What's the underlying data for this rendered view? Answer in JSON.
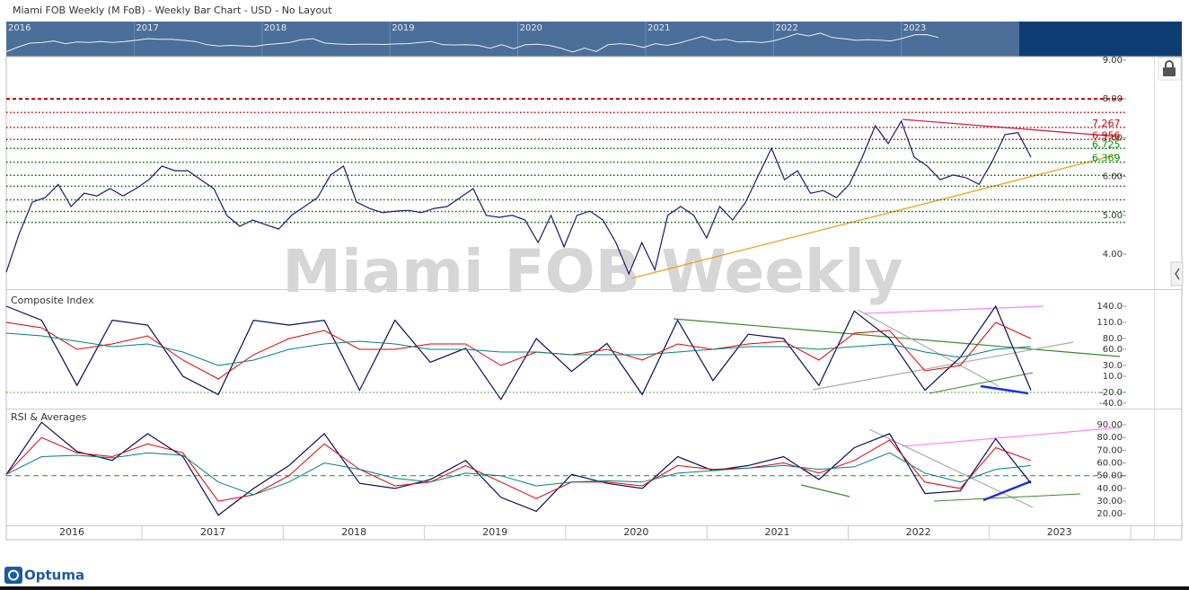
{
  "title": "Miami FOB Weekly (M FoB) - Weekly Bar Chart - USD - No Layout",
  "watermark": "Miami FOB Weekly",
  "logo": "Optuma",
  "years": [
    "2016",
    "2017",
    "2018",
    "2019",
    "2020",
    "2021",
    "2022",
    "2023"
  ],
  "chart_data": [
    {
      "type": "line",
      "series": [
        {
          "name": "Price",
          "color": "#1a1a6e",
          "values": [
            3.54,
            4.53,
            5.34,
            5.46,
            5.8,
            5.23,
            5.57,
            5.5,
            5.69,
            5.5,
            5.69,
            5.92,
            6.27,
            6.15,
            6.15,
            5.92,
            5.69,
            5.0,
            4.72,
            4.88,
            4.76,
            4.65,
            5.0,
            5.23,
            5.46,
            6.04,
            6.27,
            5.34,
            5.18,
            5.07,
            5.11,
            5.13,
            5.07,
            5.18,
            5.23,
            5.46,
            5.69,
            5.0,
            4.95,
            5.0,
            4.88,
            4.3,
            5.0,
            4.19,
            5.0,
            5.11,
            4.88,
            4.3,
            3.49,
            4.3,
            3.6,
            5.0,
            5.23,
            5.0,
            4.42,
            5.23,
            4.88,
            5.34,
            6.04,
            6.73,
            5.92,
            6.15,
            5.57,
            5.64,
            5.46,
            5.8,
            6.5,
            7.31,
            6.85,
            7.43,
            6.5,
            6.27,
            5.92,
            6.04,
            5.97,
            5.8,
            6.38,
            7.08,
            7.13,
            6.5
          ]
        }
      ],
      "ylim": [
        3.1,
        9.09
      ],
      "yticks": [
        {
          "value": 9,
          "label": "9.00"
        },
        {
          "value": 8,
          "label": "8.00"
        },
        {
          "value": 7,
          "label": "7.00"
        },
        {
          "value": 6,
          "label": "6.00"
        },
        {
          "value": 5,
          "label": "5.00"
        },
        {
          "value": 4,
          "label": "4.00"
        }
      ],
      "levels": [
        {
          "value": 8.0,
          "color": "#cc0000"
        },
        {
          "value": 7.65,
          "color": "#cc0000"
        },
        {
          "value": 7.267,
          "color": "#cc0000"
        },
        {
          "value": 6.956,
          "color": "#cc0000"
        },
        {
          "value": 6.725,
          "color": "#006600"
        },
        {
          "value": 6.369,
          "color": "#006600"
        },
        {
          "value": 6.03,
          "color": "#006600"
        },
        {
          "value": 5.75,
          "color": "#006600"
        },
        {
          "value": 5.4,
          "color": "#006600"
        },
        {
          "value": 5.1,
          "color": "#006600"
        },
        {
          "value": 4.82,
          "color": "#006600"
        }
      ],
      "price_labels": [
        7.267,
        6.956,
        6.725,
        6.369
      ],
      "price_label_colors": [
        "#cc0000",
        "#cc0000",
        "#009900",
        "#009900"
      ]
    },
    {
      "type": "line",
      "title": "Composite Index",
      "series": [
        {
          "name": "Composite",
          "color": "#0b0b5e",
          "values": [
            140,
            114,
            -7,
            114,
            105,
            10,
            -24,
            114,
            105,
            114,
            -16,
            114,
            36,
            62,
            -33,
            80,
            19,
            71,
            -24,
            114,
            2,
            88,
            80,
            -7,
            131,
            80,
            -16,
            45,
            140,
            -16
          ]
        },
        {
          "name": "Fast Avg",
          "color": "#e00000",
          "values": [
            110,
            100,
            60,
            70,
            85,
            40,
            5,
            50,
            80,
            95,
            60,
            60,
            70,
            70,
            30,
            55,
            50,
            60,
            40,
            70,
            60,
            70,
            75,
            40,
            90,
            95,
            20,
            30,
            110,
            80
          ]
        },
        {
          "name": "Slow Avg",
          "color": "#008080",
          "values": [
            90,
            85,
            75,
            65,
            70,
            55,
            30,
            40,
            60,
            70,
            75,
            70,
            60,
            60,
            55,
            55,
            50,
            50,
            50,
            55,
            60,
            65,
            65,
            60,
            65,
            70,
            55,
            45,
            60,
            65
          ]
        }
      ],
      "ylim": [
        -50,
        170
      ],
      "yticks": [
        {
          "value": 140,
          "label": "140.0"
        },
        {
          "value": 110,
          "label": "110.0"
        },
        {
          "value": 80,
          "label": "80.0"
        },
        {
          "value": 60,
          "label": "60.0"
        },
        {
          "value": 30,
          "label": "30.0"
        },
        {
          "value": 10,
          "label": "10.0"
        },
        {
          "value": -20,
          "label": "-20.0"
        },
        {
          "value": -40,
          "label": "-40.0"
        }
      ],
      "reference": -20
    },
    {
      "type": "line",
      "title": "RSI & Averages",
      "series": [
        {
          "name": "RSI",
          "color": "#0b0b5e",
          "values": [
            51,
            92,
            69,
            62,
            83,
            65,
            19,
            40,
            58,
            83,
            44,
            40,
            47,
            62,
            33,
            22,
            51,
            44,
            40,
            65,
            54,
            58,
            65,
            47,
            72,
            83,
            36,
            38,
            79,
            44
          ]
        },
        {
          "name": "Fast Avg",
          "color": "#e00000",
          "values": [
            51,
            80,
            68,
            65,
            75,
            68,
            30,
            35,
            50,
            75,
            55,
            42,
            45,
            58,
            45,
            32,
            45,
            45,
            42,
            58,
            55,
            56,
            60,
            52,
            62,
            78,
            45,
            40,
            72,
            62
          ]
        },
        {
          "name": "Slow Avg",
          "color": "#008080",
          "values": [
            51,
            65,
            66,
            64,
            68,
            66,
            45,
            35,
            45,
            60,
            55,
            48,
            45,
            52,
            50,
            42,
            45,
            46,
            45,
            52,
            54,
            56,
            58,
            55,
            57,
            68,
            52,
            45,
            55,
            58
          ]
        }
      ],
      "ylim": [
        11,
        102
      ],
      "yticks": [
        {
          "value": 90,
          "label": "90.00"
        },
        {
          "value": 80,
          "label": "80.00"
        },
        {
          "value": 70,
          "label": "70.00"
        },
        {
          "value": 60,
          "label": "60.00"
        },
        {
          "value": 50,
          "label": "50.00"
        },
        {
          "value": 40,
          "label": "40.00"
        },
        {
          "value": 30,
          "label": "30.00"
        },
        {
          "value": 20,
          "label": "20.00"
        }
      ],
      "reference": 50
    }
  ]
}
